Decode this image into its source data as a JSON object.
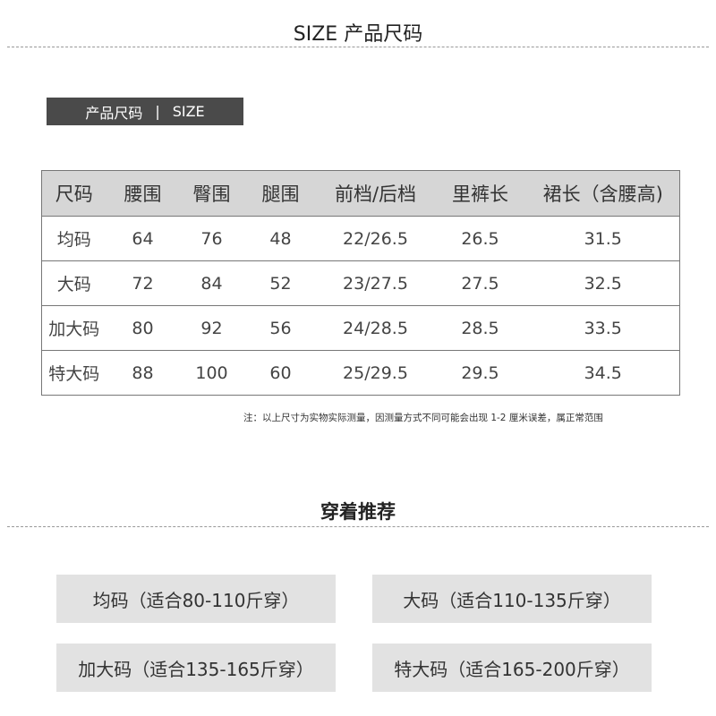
{
  "header": {
    "title": "SIZE 产品尺码"
  },
  "badge": {
    "left": "产品尺码",
    "sep": "|",
    "right": "SIZE"
  },
  "table": {
    "columns": [
      "尺码",
      "腰围",
      "臀围",
      "腿围",
      "前档/后档",
      "里裤长",
      "裙长（含腰高)"
    ],
    "rows": [
      [
        "均码",
        "64",
        "76",
        "48",
        "22/26.5",
        "26.5",
        "31.5"
      ],
      [
        "大码",
        "72",
        "84",
        "52",
        "23/27.5",
        "27.5",
        "32.5"
      ],
      [
        "加大码",
        "80",
        "92",
        "56",
        "24/28.5",
        "28.5",
        "33.5"
      ],
      [
        "特大码",
        "88",
        "100",
        "60",
        "25/29.5",
        "29.5",
        "34.5"
      ]
    ]
  },
  "note": "注：以上尺寸为实物实际测量，因测量方式不同可能会出现 1-2 厘米误差，属正常范围",
  "recommend": {
    "title": "穿着推荐",
    "items": [
      "均码（适合80-110斤穿）",
      "大码（适合110-135斤穿）",
      "加大码（适合135-165斤穿）",
      "特大码（适合165-200斤穿）"
    ]
  }
}
